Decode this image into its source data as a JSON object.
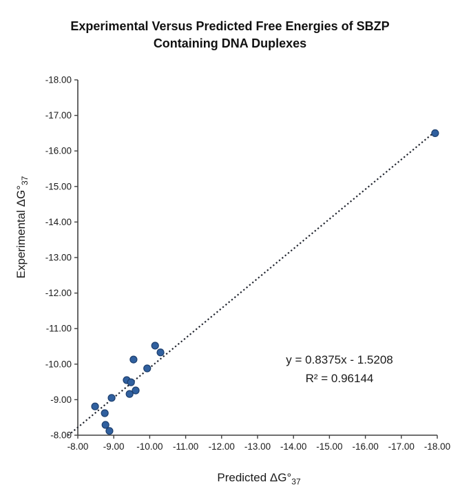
{
  "title": {
    "line1": "Experimental Versus Predicted Free Energies of SBZP",
    "line2": "Containing DNA Duplexes"
  },
  "x_axis_title": {
    "base": "Predicted ΔG°",
    "sub": "37"
  },
  "y_axis_title": {
    "base": "Experimental ΔG°",
    "sub": "37"
  },
  "chart_data": {
    "type": "scatter",
    "title": "Experimental Versus Predicted Free Energies of SBZP Containing DNA Duplexes",
    "xlabel": "Predicted ΔG°37",
    "ylabel": "Experimental ΔG°37",
    "xlim": [
      -8,
      -18
    ],
    "ylim": [
      -8,
      -18
    ],
    "x_ticks": [
      -8,
      -9,
      -10,
      -11,
      -12,
      -13,
      -14,
      -15,
      -16,
      -17,
      -18
    ],
    "y_ticks": [
      -8,
      -9,
      -10,
      -11,
      -12,
      -13,
      -14,
      -15,
      -16,
      -17,
      -18
    ],
    "tick_decimals": 2,
    "grid": false,
    "legend": false,
    "points": [
      [
        -17.94,
        -16.5
      ],
      [
        -10.15,
        -10.52
      ],
      [
        -10.3,
        -10.33
      ],
      [
        -9.55,
        -10.13
      ],
      [
        -9.93,
        -9.88
      ],
      [
        -9.36,
        -9.55
      ],
      [
        -9.48,
        -9.49
      ],
      [
        -9.61,
        -9.26
      ],
      [
        -9.44,
        -9.16
      ],
      [
        -8.94,
        -9.05
      ],
      [
        -8.48,
        -8.81
      ],
      [
        -8.75,
        -8.62
      ],
      [
        -8.77,
        -8.29
      ],
      [
        -8.88,
        -8.12
      ]
    ],
    "trendline": {
      "slope": 0.8375,
      "intercept": -1.5208,
      "x_start": -7.73,
      "x_end": -17.97,
      "style": "dotted",
      "equation_label": "y = 0.8375x - 1.5208",
      "r2_label": "R² = 0.96144"
    },
    "colors": {
      "marker_fill": "#30609f",
      "marker_stroke": "#1d3f6e",
      "trendline": "#20242e",
      "axis": "#3f3f3f",
      "text": "#1a1a1a"
    }
  }
}
